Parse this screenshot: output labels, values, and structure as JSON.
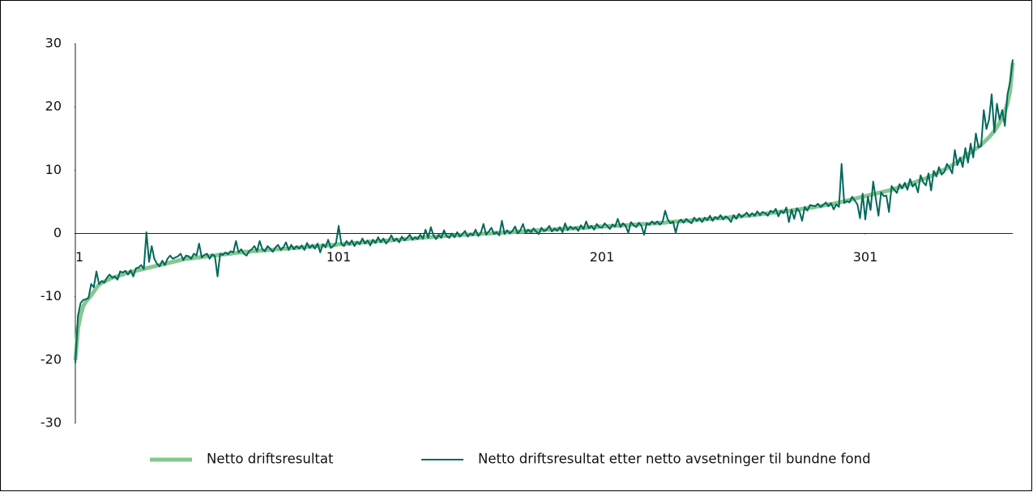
{
  "chart_data": {
    "type": "line",
    "x": [
      1,
      2,
      3,
      4,
      5,
      6,
      7,
      8,
      9,
      10,
      11,
      12,
      13,
      14,
      15,
      16,
      17,
      18,
      19,
      20,
      21,
      22,
      23,
      24,
      25,
      26,
      27,
      28,
      29,
      30,
      31,
      32,
      33,
      34,
      35,
      36,
      37,
      38,
      39,
      40,
      41,
      42,
      43,
      44,
      45,
      46,
      47,
      48,
      49,
      50,
      51,
      52,
      53,
      54,
      55,
      56,
      57,
      58,
      59,
      60,
      61,
      62,
      63,
      64,
      65,
      66,
      67,
      68,
      69,
      70,
      71,
      72,
      73,
      74,
      75,
      76,
      77,
      78,
      79,
      80,
      81,
      82,
      83,
      84,
      85,
      86,
      87,
      88,
      89,
      90,
      91,
      92,
      93,
      94,
      95,
      96,
      97,
      98,
      99,
      100,
      101,
      102,
      103,
      104,
      105,
      106,
      107,
      108,
      109,
      110,
      111,
      112,
      113,
      114,
      115,
      116,
      117,
      118,
      119,
      120,
      121,
      122,
      123,
      124,
      125,
      126,
      127,
      128,
      129,
      130,
      131,
      132,
      133,
      134,
      135,
      136,
      137,
      138,
      139,
      140,
      141,
      142,
      143,
      144,
      145,
      146,
      147,
      148,
      149,
      150,
      151,
      152,
      153,
      154,
      155,
      156,
      157,
      158,
      159,
      160,
      161,
      162,
      163,
      164,
      165,
      166,
      167,
      168,
      169,
      170,
      171,
      172,
      173,
      174,
      175,
      176,
      177,
      178,
      179,
      180,
      181,
      182,
      183,
      184,
      185,
      186,
      187,
      188,
      189,
      190,
      191,
      192,
      193,
      194,
      195,
      196,
      197,
      198,
      199,
      200,
      201,
      202,
      203,
      204,
      205,
      206,
      207,
      208,
      209,
      210,
      211,
      212,
      213,
      214,
      215,
      216,
      217,
      218,
      219,
      220,
      221,
      222,
      223,
      224,
      225,
      226,
      227,
      228,
      229,
      230,
      231,
      232,
      233,
      234,
      235,
      236,
      237,
      238,
      239,
      240,
      241,
      242,
      243,
      244,
      245,
      246,
      247,
      248,
      249,
      250,
      251,
      252,
      253,
      254,
      255,
      256,
      257,
      258,
      259,
      260,
      261,
      262,
      263,
      264,
      265,
      266,
      267,
      268,
      269,
      270,
      271,
      272,
      273,
      274,
      275,
      276,
      277,
      278,
      279,
      280,
      281,
      282,
      283,
      284,
      285,
      286,
      287,
      288,
      289,
      290,
      291,
      292,
      293,
      294,
      295,
      296,
      297,
      298,
      299,
      300,
      301,
      302,
      303,
      304,
      305,
      306,
      307,
      308,
      309,
      310,
      311,
      312,
      313,
      314,
      315,
      316,
      317,
      318,
      319,
      320,
      321,
      322,
      323,
      324,
      325,
      326,
      327,
      328,
      329,
      330,
      331,
      332,
      333,
      334,
      335,
      336,
      337,
      338,
      339,
      340,
      341,
      342,
      343,
      344,
      345,
      346,
      347,
      348,
      349,
      350,
      351,
      352,
      353,
      354,
      355,
      356,
      357
    ],
    "series": [
      {
        "name": "Netto driftsresultat",
        "color": "#86c791",
        "values": [
          -20,
          -15,
          -13,
          -11.5,
          -10.8,
          -10.3,
          -9.8,
          -9.2,
          -8.6,
          -8.1,
          -7.8,
          -7.6,
          -7.4,
          -7.2,
          -7.0,
          -6.9,
          -6.8,
          -6.6,
          -6.5,
          -6.3,
          -6.2,
          -6.1,
          -6.0,
          -5.9,
          -5.8,
          -5.7,
          -5.6,
          -5.5,
          -5.4,
          -5.3,
          -5.2,
          -5.1,
          -5.0,
          -4.9,
          -4.8,
          -4.7,
          -4.6,
          -4.5,
          -4.4,
          -4.3,
          -4.2,
          -4.1,
          -4.0,
          -4.0,
          -3.9,
          -3.9,
          -3.8,
          -3.8,
          -3.7,
          -3.7,
          -3.6,
          -3.6,
          -3.5,
          -3.5,
          -3.4,
          -3.4,
          -3.3,
          -3.3,
          -3.2,
          -3.2,
          -3.1,
          -3.1,
          -3.0,
          -3.0,
          -2.9,
          -2.9,
          -2.9,
          -2.8,
          -2.8,
          -2.8,
          -2.7,
          -2.7,
          -2.7,
          -2.6,
          -2.6,
          -2.6,
          -2.5,
          -2.5,
          -2.5,
          -2.4,
          -2.4,
          -2.4,
          -2.3,
          -2.3,
          -2.3,
          -2.2,
          -2.2,
          -2.2,
          -2.1,
          -2.1,
          -2.1,
          -2.0,
          -2.0,
          -2.0,
          -1.9,
          -1.9,
          -1.9,
          -1.8,
          -1.8,
          -1.8,
          -1.7,
          -1.7,
          -1.7,
          -1.6,
          -1.6,
          -1.6,
          -1.5,
          -1.5,
          -1.5,
          -1.4,
          -1.4,
          -1.4,
          -1.3,
          -1.3,
          -1.3,
          -1.2,
          -1.2,
          -1.2,
          -1.1,
          -1.1,
          -1.1,
          -1.0,
          -1.0,
          -1.0,
          -0.9,
          -0.9,
          -0.9,
          -0.8,
          -0.8,
          -0.8,
          -0.7,
          -0.7,
          -0.7,
          -0.6,
          -0.6,
          -0.6,
          -0.5,
          -0.5,
          -0.5,
          -0.4,
          -0.4,
          -0.4,
          -0.4,
          -0.3,
          -0.3,
          -0.3,
          -0.3,
          -0.2,
          -0.2,
          -0.2,
          -0.2,
          -0.1,
          -0.1,
          -0.1,
          -0.1,
          0,
          0,
          0,
          0,
          0.1,
          0.1,
          0.1,
          0.1,
          0.2,
          0.2,
          0.2,
          0.2,
          0.3,
          0.3,
          0.3,
          0.3,
          0.4,
          0.4,
          0.4,
          0.4,
          0.5,
          0.5,
          0.5,
          0.5,
          0.6,
          0.6,
          0.6,
          0.6,
          0.7,
          0.7,
          0.7,
          0.7,
          0.8,
          0.8,
          0.8,
          0.8,
          0.9,
          0.9,
          0.9,
          0.9,
          1.0,
          1.0,
          1.0,
          1.0,
          1.1,
          1.1,
          1.1,
          1.1,
          1.2,
          1.2,
          1.2,
          1.2,
          1.3,
          1.3,
          1.3,
          1.3,
          1.4,
          1.4,
          1.4,
          1.4,
          1.5,
          1.5,
          1.5,
          1.5,
          1.6,
          1.6,
          1.6,
          1.7,
          1.7,
          1.7,
          1.8,
          1.8,
          1.8,
          1.9,
          1.9,
          1.9,
          2.0,
          2.0,
          2.0,
          2.1,
          2.1,
          2.1,
          2.2,
          2.2,
          2.2,
          2.3,
          2.3,
          2.3,
          2.4,
          2.4,
          2.4,
          2.5,
          2.5,
          2.5,
          2.6,
          2.6,
          2.6,
          2.7,
          2.7,
          2.8,
          2.8,
          2.8,
          2.9,
          2.9,
          3.0,
          3.0,
          3.1,
          3.1,
          3.2,
          3.2,
          3.3,
          3.3,
          3.4,
          3.4,
          3.5,
          3.5,
          3.6,
          3.6,
          3.7,
          3.7,
          3.8,
          3.9,
          3.9,
          4.0,
          4.1,
          4.1,
          4.2,
          4.3,
          4.3,
          4.4,
          4.5,
          4.6,
          4.6,
          4.7,
          4.8,
          4.9,
          5.0,
          5.1,
          5.2,
          5.3,
          5.4,
          5.5,
          5.6,
          5.7,
          5.8,
          5.9,
          6.0,
          6.1,
          6.2,
          6.3,
          6.4,
          6.5,
          6.6,
          6.7,
          6.8,
          6.9,
          7.0,
          7.2,
          7.3,
          7.4,
          7.6,
          7.7,
          7.8,
          8.0,
          8.1,
          8.3,
          8.4,
          8.6,
          8.7,
          8.9,
          9.1,
          9.3,
          9.5,
          9.7,
          9.9,
          10.1,
          10.3,
          10.5,
          10.8,
          11.0,
          11.3,
          11.6,
          11.9,
          12.2,
          12.5,
          12.8,
          13.1,
          13.4,
          13.7,
          14.0,
          14.4,
          14.8,
          15.2,
          15.7,
          16.2,
          16.8,
          17.5,
          18.3,
          19.3,
          20.6,
          22.5,
          27.0
        ]
      },
      {
        "name": "Netto driftsresultat etter netto avsetninger til bundne fond",
        "color": "#00685a",
        "values": [
          -20.5,
          -13,
          -11,
          -10.5,
          -10.4,
          -10.2,
          -8,
          -8.5,
          -6,
          -8,
          -7.5,
          -7.8,
          -7,
          -6.5,
          -7,
          -6.8,
          -7.3,
          -6,
          -6.2,
          -5.9,
          -6.5,
          -5.8,
          -6.8,
          -5.5,
          -5.4,
          -5,
          -5.6,
          0.2,
          -4.5,
          -2,
          -4,
          -4.8,
          -5.2,
          -4.3,
          -5,
          -4,
          -3.5,
          -4,
          -3.8,
          -3.6,
          -3.2,
          -4.2,
          -3.5,
          -3.6,
          -4,
          -3.2,
          -3.5,
          -1.6,
          -3.8,
          -3.4,
          -3.2,
          -4,
          -3.3,
          -3.6,
          -6.8,
          -3.2,
          -3.4,
          -3,
          -3.3,
          -2.8,
          -3,
          -1.2,
          -3,
          -2.5,
          -3.2,
          -3.5,
          -2.8,
          -2.5,
          -2,
          -2.8,
          -1.2,
          -2.5,
          -2.8,
          -2,
          -2.4,
          -2.9,
          -2.2,
          -1.8,
          -2.6,
          -2.2,
          -1.4,
          -2.6,
          -1.8,
          -2.5,
          -2,
          -2.4,
          -1.9,
          -2.6,
          -1.5,
          -2.3,
          -1.8,
          -2.4,
          -1.6,
          -3,
          -1.7,
          -2.2,
          -1,
          -2.3,
          -2,
          -1.5,
          1.2,
          -1.6,
          -2,
          -1.2,
          -1.8,
          -1.1,
          -2,
          -1.3,
          -1.7,
          -0.8,
          -1.6,
          -1.1,
          -1.9,
          -1,
          -1.5,
          -0.6,
          -1.4,
          -0.8,
          -1.6,
          -1.1,
          -0.3,
          -1.2,
          -0.8,
          -1.4,
          -0.5,
          -1.1,
          -0.7,
          -0.2,
          -1,
          -0.6,
          -0.9,
          -0.2,
          -0.8,
          0.6,
          -0.7,
          1,
          -0.3,
          -0.9,
          -0.2,
          -0.7,
          0.5,
          -0.4,
          -0.7,
          0,
          -0.6,
          0.2,
          -0.5,
          -0.1,
          0.4,
          -0.5,
          0,
          -0.3,
          0.6,
          -0.4,
          0.1,
          1.5,
          -0.2,
          0.3,
          0.9,
          -0.1,
          0.2,
          -0.3,
          2,
          -0.1,
          0.5,
          0,
          0.4,
          1.1,
          0,
          0.5,
          1.5,
          0.1,
          0.6,
          0.2,
          0.8,
          0.3,
          -0.1,
          0.9,
          0.4,
          0.6,
          1.2,
          0.3,
          0.8,
          0.4,
          1,
          0.2,
          1.6,
          0.5,
          1.1,
          0.7,
          1,
          0.4,
          1.3,
          0.7,
          1.9,
          0.8,
          1.2,
          0.6,
          1.5,
          1,
          0.9,
          1.6,
          1.2,
          0.7,
          1.4,
          1.1,
          2.3,
          1,
          1.6,
          1.2,
          0.1,
          1.8,
          1.3,
          1,
          1.7,
          1.2,
          -0.2,
          1.6,
          1.4,
          1.9,
          1.5,
          1.9,
          1.4,
          1.8,
          3.6,
          2.2,
          1.6,
          1.9,
          0.1,
          1.8,
          2.2,
          1.7,
          2.3,
          1.9,
          1.6,
          2.5,
          2,
          2.4,
          1.8,
          2.5,
          2.1,
          2.8,
          2,
          2.6,
          2.3,
          2.9,
          2.2,
          2.7,
          2.4,
          1.8,
          2.9,
          2.3,
          3.1,
          2.6,
          2.9,
          3.3,
          2.7,
          3.2,
          2.8,
          3.5,
          2.9,
          3.4,
          3.2,
          2.8,
          3.6,
          3.3,
          3.9,
          2.7,
          3.6,
          3.2,
          4.1,
          1.8,
          3.8,
          2.3,
          4,
          3.5,
          2,
          4.2,
          3.6,
          4.5,
          4.4,
          4.3,
          4.7,
          4.2,
          4.5,
          4.9,
          4.3,
          4.8,
          3.8,
          4.6,
          4.2,
          11,
          4.8,
          5.1,
          4.9,
          5.8,
          5.2,
          4.6,
          2.4,
          6.3,
          2.2,
          5.8,
          3.7,
          8.2,
          5.5,
          2.8,
          6.5,
          5.9,
          6,
          3.4,
          7.5,
          6.9,
          6.4,
          7.8,
          7.1,
          8,
          6.9,
          8.6,
          7.4,
          7.9,
          6.5,
          9.2,
          8.1,
          7.6,
          9.5,
          6.8,
          9.9,
          9,
          10.5,
          9.3,
          9.7,
          11,
          10.4,
          9.5,
          13.2,
          10.8,
          12,
          10.5,
          13.5,
          11.2,
          14.2,
          12,
          15.8,
          13.6,
          13.8,
          19.5,
          16.5,
          18,
          22,
          16,
          20.5,
          18,
          19.5,
          17,
          22,
          24,
          27.5
        ]
      }
    ],
    "xlim": [
      1,
      357
    ],
    "xticks": [
      1,
      101,
      201,
      301
    ],
    "ylim": [
      -30,
      30
    ],
    "yticks": [
      -30,
      -20,
      -10,
      0,
      10,
      20,
      30
    ]
  }
}
